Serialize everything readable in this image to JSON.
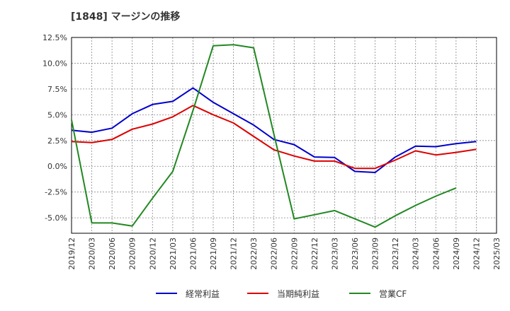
{
  "chart_data": {
    "type": "line",
    "title": "[1848]  マージンの推移",
    "xlabel": "",
    "ylabel": "",
    "ylim": [
      -6.5,
      12.5
    ],
    "yticks": [
      -5.0,
      -2.5,
      0.0,
      2.5,
      5.0,
      7.5,
      10.0,
      12.5
    ],
    "ytick_labels": [
      "-5.0%",
      "-2.5%",
      "0.0%",
      "2.5%",
      "5.0%",
      "7.5%",
      "10.0%",
      "12.5%"
    ],
    "categories": [
      "2019/12",
      "2020/03",
      "2020/06",
      "2020/09",
      "2020/12",
      "2021/03",
      "2021/06",
      "2021/09",
      "2021/12",
      "2022/03",
      "2022/06",
      "2022/09",
      "2022/12",
      "2023/03",
      "2023/06",
      "2023/09",
      "2023/12",
      "2024/03",
      "2024/06",
      "2024/09",
      "2024/12",
      "2025/03"
    ],
    "grid": true,
    "legend_position": "bottom",
    "series": [
      {
        "name": "経常利益",
        "color": "#0000cc",
        "values": [
          3.5,
          3.3,
          3.7,
          5.1,
          6.0,
          6.3,
          7.6,
          6.2,
          5.1,
          4.0,
          2.6,
          2.1,
          0.9,
          0.85,
          -0.5,
          -0.6,
          0.9,
          1.95,
          1.9,
          2.2,
          2.4,
          null
        ]
      },
      {
        "name": "当期純利益",
        "color": "#dd0000",
        "values": [
          2.4,
          2.3,
          2.6,
          3.6,
          4.1,
          4.8,
          5.9,
          5.0,
          4.2,
          2.9,
          1.6,
          1.0,
          0.5,
          0.5,
          -0.2,
          -0.2,
          0.6,
          1.5,
          1.1,
          1.35,
          1.65,
          null
        ]
      },
      {
        "name": "営業CF",
        "color": "#228822",
        "values": [
          4.5,
          -5.5,
          -5.5,
          -5.8,
          -3.1,
          -0.5,
          5.4,
          11.7,
          11.8,
          11.5,
          3.1,
          -5.1,
          -4.7,
          -4.3,
          -5.1,
          -5.9,
          -4.8,
          -3.8,
          -2.9,
          -2.1,
          null,
          null
        ]
      }
    ]
  }
}
